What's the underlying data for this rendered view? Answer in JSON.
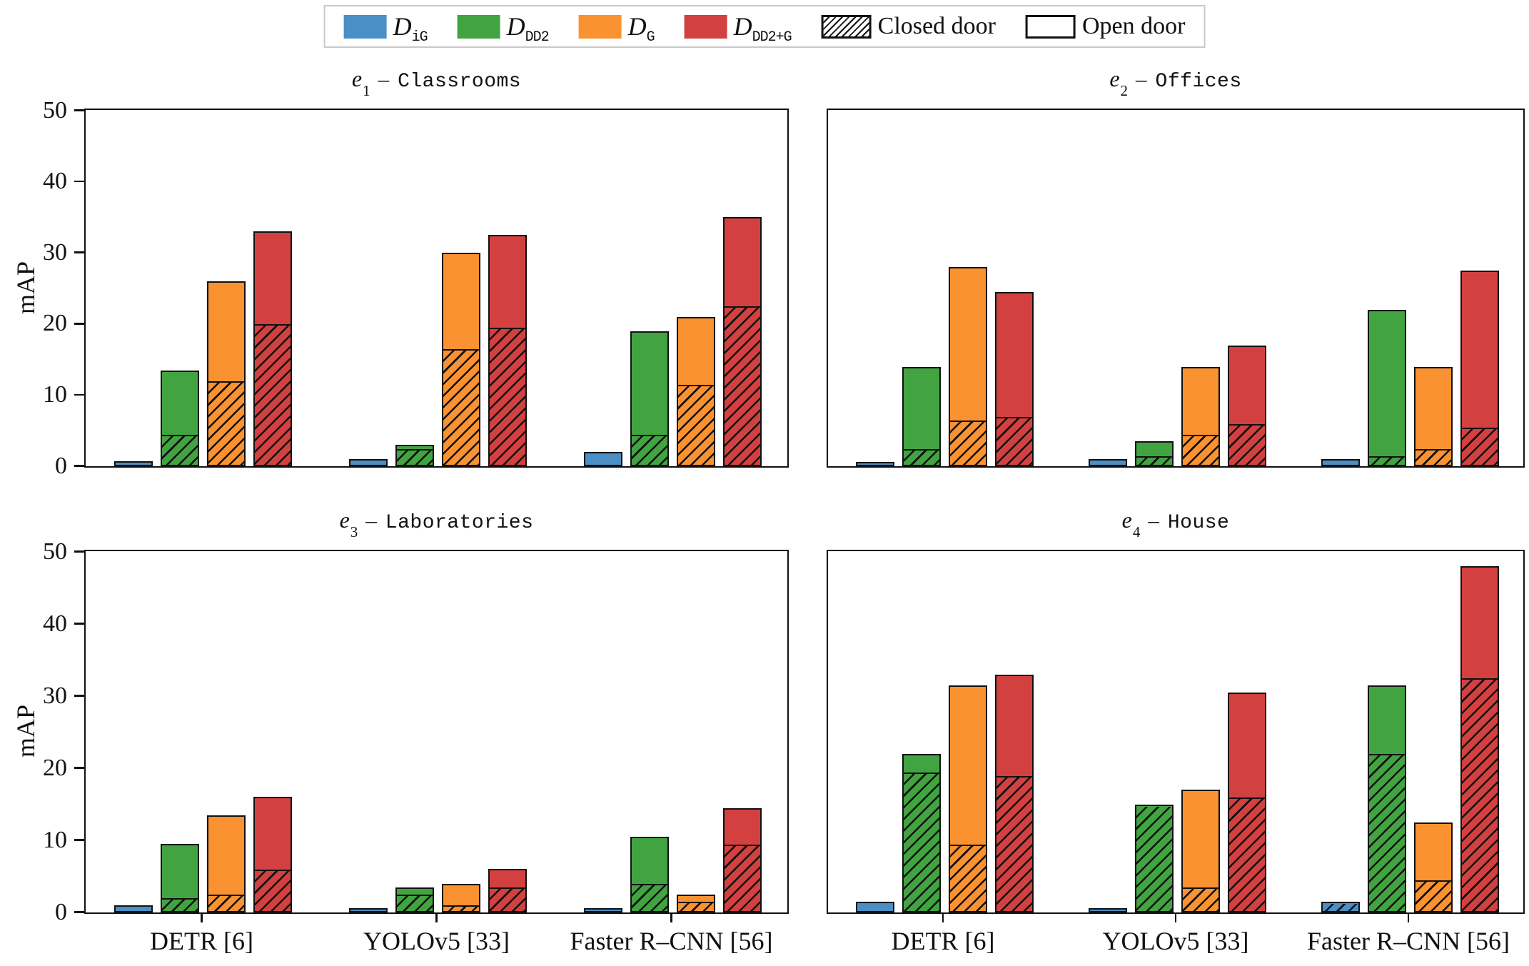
{
  "colors": {
    "blue": "#4a8fc6",
    "green": "#41a441",
    "orange": "#fb9231",
    "red": "#d34040",
    "edge": "#111111",
    "legend_border": "#c9c9c9"
  },
  "legend": {
    "items": [
      {
        "type": "patch",
        "color": "blue",
        "label_main": "D",
        "label_sub": "iG"
      },
      {
        "type": "patch",
        "color": "green",
        "label_main": "D",
        "label_sub": "DD2"
      },
      {
        "type": "patch",
        "color": "orange",
        "label_main": "D",
        "label_sub": "G"
      },
      {
        "type": "patch",
        "color": "red",
        "label_main": "D",
        "label_sub": "DD2+G"
      },
      {
        "type": "hatch",
        "label": "Closed door"
      },
      {
        "type": "open",
        "label": "Open door"
      }
    ]
  },
  "chart_data": {
    "type": "bar",
    "ylabel": "mAP",
    "ylim": [
      0,
      50
    ],
    "yticks": [
      0,
      10,
      20,
      30,
      40,
      50
    ],
    "grid": false,
    "legend_position": "top-center",
    "categories": [
      "DETR [6]",
      "YOLOv5 [33]",
      "Faster R–CNN [56]"
    ],
    "series": [
      {
        "key": "D_iG",
        "color_key": "blue"
      },
      {
        "key": "D_DD2",
        "color_key": "green"
      },
      {
        "key": "D_G",
        "color_key": "orange"
      },
      {
        "key": "D_DD2+G",
        "color_key": "red"
      }
    ],
    "segment_meaning": {
      "hatched_bottom": "Closed door",
      "plain_top": "Open door"
    },
    "subplots": [
      {
        "id": "e1",
        "title": {
          "var": "e",
          "sub": "1",
          "sep": "–",
          "name": "Classrooms"
        },
        "values": [
          {
            "category": "DETR [6]",
            "bars": [
              {
                "series": "D_iG",
                "total": 0.2,
                "closed": 0
              },
              {
                "series": "D_DD2",
                "total": 13,
                "closed": 4
              },
              {
                "series": "D_G",
                "total": 25.5,
                "closed": 11.5
              },
              {
                "series": "D_DD2+G",
                "total": 32.5,
                "closed": 19.5
              }
            ]
          },
          {
            "category": "YOLOv5 [33]",
            "bars": [
              {
                "series": "D_iG",
                "total": 0.5,
                "closed": 0
              },
              {
                "series": "D_DD2",
                "total": 2.5,
                "closed": 2
              },
              {
                "series": "D_G",
                "total": 29.5,
                "closed": 16
              },
              {
                "series": "D_DD2+G",
                "total": 32,
                "closed": 19
              }
            ]
          },
          {
            "category": "Faster R–CNN [56]",
            "bars": [
              {
                "series": "D_iG",
                "total": 1.5,
                "closed": 0
              },
              {
                "series": "D_DD2",
                "total": 18.5,
                "closed": 4
              },
              {
                "series": "D_G",
                "total": 20.5,
                "closed": 11
              },
              {
                "series": "D_DD2+G",
                "total": 34.5,
                "closed": 22
              }
            ]
          }
        ]
      },
      {
        "id": "e2",
        "title": {
          "var": "e",
          "sub": "2",
          "sep": "–",
          "name": "Offices"
        },
        "values": [
          {
            "category": "DETR [6]",
            "bars": [
              {
                "series": "D_iG",
                "total": 0.1,
                "closed": 0
              },
              {
                "series": "D_DD2",
                "total": 13.5,
                "closed": 2
              },
              {
                "series": "D_G",
                "total": 27.5,
                "closed": 6
              },
              {
                "series": "D_DD2+G",
                "total": 24,
                "closed": 6.5
              }
            ]
          },
          {
            "category": "YOLOv5 [33]",
            "bars": [
              {
                "series": "D_iG",
                "total": 0.5,
                "closed": 0
              },
              {
                "series": "D_DD2",
                "total": 3,
                "closed": 1
              },
              {
                "series": "D_G",
                "total": 13.5,
                "closed": 4
              },
              {
                "series": "D_DD2+G",
                "total": 16.5,
                "closed": 5.5
              }
            ]
          },
          {
            "category": "Faster R–CNN [56]",
            "bars": [
              {
                "series": "D_iG",
                "total": 0.5,
                "closed": 0
              },
              {
                "series": "D_DD2",
                "total": 21.5,
                "closed": 1
              },
              {
                "series": "D_G",
                "total": 13.5,
                "closed": 2
              },
              {
                "series": "D_DD2+G",
                "total": 27,
                "closed": 5
              }
            ]
          }
        ]
      },
      {
        "id": "e3",
        "title": {
          "var": "e",
          "sub": "3",
          "sep": "–",
          "name": "Laboratories"
        },
        "values": [
          {
            "category": "DETR [6]",
            "bars": [
              {
                "series": "D_iG",
                "total": 0.5,
                "closed": 0
              },
              {
                "series": "D_DD2",
                "total": 9,
                "closed": 1.5
              },
              {
                "series": "D_G",
                "total": 13,
                "closed": 2
              },
              {
                "series": "D_DD2+G",
                "total": 15.5,
                "closed": 5.5
              }
            ]
          },
          {
            "category": "YOLOv5 [33]",
            "bars": [
              {
                "series": "D_iG",
                "total": 0.1,
                "closed": 0
              },
              {
                "series": "D_DD2",
                "total": 3,
                "closed": 2
              },
              {
                "series": "D_G",
                "total": 3.5,
                "closed": 0.5
              },
              {
                "series": "D_DD2+G",
                "total": 5.5,
                "closed": 3
              }
            ]
          },
          {
            "category": "Faster R–CNN [56]",
            "bars": [
              {
                "series": "D_iG",
                "total": 0.1,
                "closed": 0
              },
              {
                "series": "D_DD2",
                "total": 10,
                "closed": 3.5
              },
              {
                "series": "D_G",
                "total": 2,
                "closed": 1
              },
              {
                "series": "D_DD2+G",
                "total": 14,
                "closed": 9
              }
            ]
          }
        ]
      },
      {
        "id": "e4",
        "title": {
          "var": "e",
          "sub": "4",
          "sep": "–",
          "name": "House"
        },
        "values": [
          {
            "category": "DETR [6]",
            "bars": [
              {
                "series": "D_iG",
                "total": 1,
                "closed": 0
              },
              {
                "series": "D_DD2",
                "total": 21.5,
                "closed": 19
              },
              {
                "series": "D_G",
                "total": 31,
                "closed": 9
              },
              {
                "series": "D_DD2+G",
                "total": 32.5,
                "closed": 18.5
              }
            ]
          },
          {
            "category": "YOLOv5 [33]",
            "bars": [
              {
                "series": "D_iG",
                "total": 0.1,
                "closed": 0
              },
              {
                "series": "D_DD2",
                "total": 14.5,
                "closed": 14.5
              },
              {
                "series": "D_G",
                "total": 16.5,
                "closed": 3
              },
              {
                "series": "D_DD2+G",
                "total": 30,
                "closed": 15.5
              }
            ]
          },
          {
            "category": "Faster R–CNN [56]",
            "bars": [
              {
                "series": "D_iG",
                "total": 1,
                "closed": 1
              },
              {
                "series": "D_DD2",
                "total": 31,
                "closed": 21.5
              },
              {
                "series": "D_G",
                "total": 12,
                "closed": 4
              },
              {
                "series": "D_DD2+G",
                "total": 47.5,
                "closed": 32
              }
            ]
          }
        ]
      }
    ]
  }
}
